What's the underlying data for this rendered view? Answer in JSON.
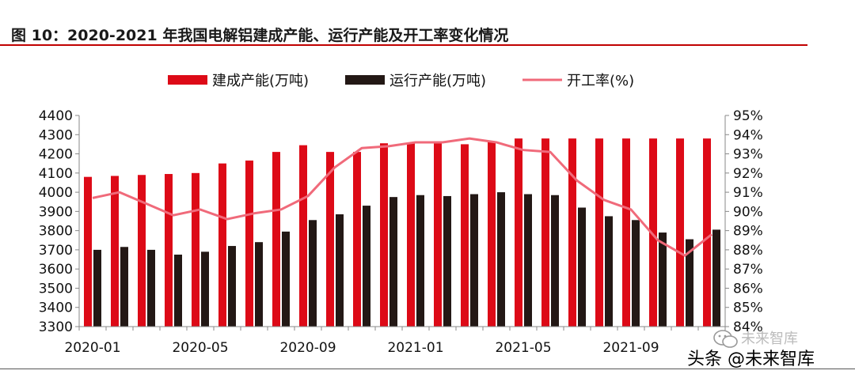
{
  "figure": {
    "title": "图 10：2020-2021 年我国电解铝建成产能、运行产能及开工率变化情况"
  },
  "watermark": {
    "main_text": "头条 @未来智库",
    "ghost_text": "未来智库",
    "icon": "wechat-icon"
  },
  "colors": {
    "built_bar": "#dd0a17",
    "running_bar": "#231815",
    "rate_line": "#f06a7a",
    "rule": "#c00000"
  },
  "chart_data": {
    "type": "bar",
    "categories": [
      "2020-01",
      "2020-02",
      "2020-03",
      "2020-04",
      "2020-05",
      "2020-06",
      "2020-07",
      "2020-08",
      "2020-09",
      "2020-10",
      "2020-11",
      "2020-12",
      "2021-01",
      "2021-02",
      "2021-03",
      "2021-04",
      "2021-05",
      "2021-06",
      "2021-07",
      "2021-08",
      "2021-09",
      "2021-10",
      "2021-11",
      "2021-12"
    ],
    "x_tick_labels": [
      "2020-01",
      "2020-05",
      "2020-09",
      "2021-01",
      "2021-05",
      "2021-09"
    ],
    "x_tick_every": 4,
    "series": [
      {
        "name": "建成产能(万吨)",
        "kind": "bar",
        "axis": "left",
        "values": [
          4080,
          4085,
          4090,
          4095,
          4100,
          4150,
          4165,
          4210,
          4245,
          4210,
          4210,
          4255,
          4255,
          4255,
          4250,
          4265,
          4280,
          4280,
          4280,
          4280,
          4280,
          4280,
          4280,
          4280
        ]
      },
      {
        "name": "运行产能(万吨)",
        "kind": "bar",
        "axis": "left",
        "values": [
          3700,
          3715,
          3700,
          3675,
          3690,
          3720,
          3740,
          3795,
          3855,
          3885,
          3930,
          3975,
          3985,
          3980,
          3990,
          4000,
          3990,
          3985,
          3920,
          3875,
          3855,
          3790,
          3755,
          3805
        ]
      },
      {
        "name": "开工率(%)",
        "kind": "line",
        "axis": "right",
        "values": [
          90.7,
          91.0,
          90.4,
          89.8,
          90.1,
          89.6,
          89.9,
          90.1,
          90.8,
          92.3,
          93.3,
          93.4,
          93.6,
          93.6,
          93.8,
          93.6,
          93.2,
          93.1,
          91.6,
          90.6,
          90.1,
          88.5,
          87.7,
          88.8
        ]
      }
    ],
    "y_left": {
      "min": 3300,
      "max": 4400,
      "step": 100,
      "tick_labels": [
        "3300",
        "3400",
        "3500",
        "3600",
        "3700",
        "3800",
        "3900",
        "4000",
        "4100",
        "4200",
        "4300",
        "4400"
      ]
    },
    "y_right": {
      "min": 84,
      "max": 95,
      "step": 1,
      "tick_labels": [
        "84%",
        "85%",
        "86%",
        "87%",
        "88%",
        "89%",
        "90%",
        "91%",
        "92%",
        "93%",
        "94%",
        "95%"
      ]
    },
    "legend_position": "top-center",
    "grid": false
  }
}
